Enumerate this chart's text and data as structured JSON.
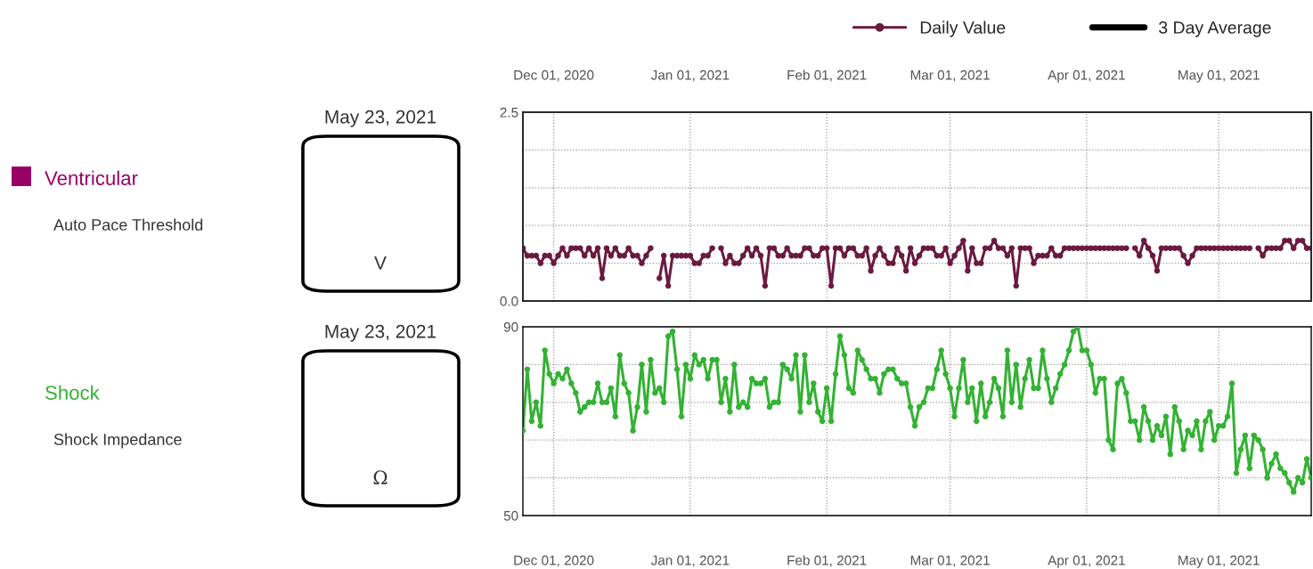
{
  "chart_data": [
    {
      "type": "other",
      "title": "Ventricular",
      "subtitle": "Auto Pace Threshold",
      "annotations": [
        "May 23, 2021",
        "V"
      ]
    },
    {
      "type": "line",
      "x": [
        "2020-11-24",
        "2020-11-25",
        "2020-11-26",
        "2020-11-27",
        "2020-11-28",
        "2020-11-29",
        "2020-11-30",
        "2020-12-01",
        "2020-12-02",
        "2020-12-03",
        "2020-12-04",
        "2020-12-05",
        "2020-12-06",
        "2020-12-07",
        "2020-12-08",
        "2020-12-09",
        "2020-12-10",
        "2020-12-11",
        "2020-12-12",
        "2020-12-13",
        "2020-12-14",
        "2020-12-15",
        "2020-12-16",
        "2020-12-17",
        "2020-12-18",
        "2020-12-19",
        "2020-12-20",
        "2020-12-21",
        "2020-12-22",
        "2020-12-23",
        "2020-12-24",
        "2020-12-25",
        "2020-12-26",
        "2020-12-27",
        "2020-12-28",
        "2020-12-29",
        "2020-12-30",
        "2020-12-31",
        "2021-01-01",
        "2021-01-02",
        "2021-01-03",
        "2021-01-04",
        "2021-01-05",
        "2021-01-06",
        "2021-01-07",
        "2021-01-08",
        "2021-01-09",
        "2021-01-10",
        "2021-01-11",
        "2021-01-12",
        "2021-01-13",
        "2021-01-14",
        "2021-01-15",
        "2021-01-16",
        "2021-01-17",
        "2021-01-18",
        "2021-01-19",
        "2021-01-20",
        "2021-01-21",
        "2021-01-22",
        "2021-01-23",
        "2021-01-24",
        "2021-01-25",
        "2021-01-26",
        "2021-01-27",
        "2021-01-28",
        "2021-01-29",
        "2021-01-30",
        "2021-01-31",
        "2021-02-01",
        "2021-02-02",
        "2021-02-03",
        "2021-02-04",
        "2021-02-05",
        "2021-02-06",
        "2021-02-07",
        "2021-02-08",
        "2021-02-09",
        "2021-02-10",
        "2021-02-11",
        "2021-02-12",
        "2021-02-13",
        "2021-02-14",
        "2021-02-15",
        "2021-02-16",
        "2021-02-17",
        "2021-02-18",
        "2021-02-19",
        "2021-02-20",
        "2021-02-21",
        "2021-02-22",
        "2021-02-23",
        "2021-02-24",
        "2021-02-25",
        "2021-02-26",
        "2021-02-27",
        "2021-02-28",
        "2021-03-01",
        "2021-03-02",
        "2021-03-03",
        "2021-03-04",
        "2021-03-05",
        "2021-03-06",
        "2021-03-07",
        "2021-03-08",
        "2021-03-09",
        "2021-03-10",
        "2021-03-11",
        "2021-03-12",
        "2021-03-13",
        "2021-03-14",
        "2021-03-15",
        "2021-03-16",
        "2021-03-17",
        "2021-03-18",
        "2021-03-19",
        "2021-03-20",
        "2021-03-21",
        "2021-03-22",
        "2021-03-23",
        "2021-03-24",
        "2021-03-25",
        "2021-03-26",
        "2021-03-27",
        "2021-03-28",
        "2021-03-29",
        "2021-03-30",
        "2021-03-31",
        "2021-04-01",
        "2021-04-02",
        "2021-04-03",
        "2021-04-04",
        "2021-04-05",
        "2021-04-06",
        "2021-04-07",
        "2021-04-08",
        "2021-04-09",
        "2021-04-10",
        "2021-04-11",
        "2021-04-12",
        "2021-04-13",
        "2021-04-14",
        "2021-04-15",
        "2021-04-16",
        "2021-04-17",
        "2021-04-18",
        "2021-04-19",
        "2021-04-20",
        "2021-04-21",
        "2021-04-22",
        "2021-04-23",
        "2021-04-24",
        "2021-04-25",
        "2021-04-26",
        "2021-04-27",
        "2021-04-28",
        "2021-04-29",
        "2021-04-30",
        "2021-05-01",
        "2021-05-02",
        "2021-05-03",
        "2021-05-04",
        "2021-05-05",
        "2021-05-06",
        "2021-05-07",
        "2021-05-08",
        "2021-05-09",
        "2021-05-10",
        "2021-05-11",
        "2021-05-12",
        "2021-05-13",
        "2021-05-14",
        "2021-05-15",
        "2021-05-16",
        "2021-05-17",
        "2021-05-18",
        "2021-05-19",
        "2021-05-20",
        "2021-05-21",
        "2021-05-22"
      ],
      "series": [
        {
          "name": "Daily Value",
          "color": "#6b1a3f",
          "marker": "circle",
          "line_style": "solid",
          "values": [
            0.7,
            0.6,
            0.6,
            0.6,
            0.5,
            0.6,
            0.6,
            0.5,
            0.6,
            0.7,
            0.6,
            0.7,
            0.7,
            0.7,
            0.6,
            0.7,
            0.6,
            0.7,
            0.3,
            0.7,
            0.6,
            0.7,
            0.6,
            0.6,
            0.7,
            0.6,
            0.6,
            0.5,
            0.6,
            0.7,
            null,
            0.3,
            0.6,
            0.2,
            0.6,
            0.6,
            0.6,
            0.6,
            0.6,
            0.5,
            0.5,
            0.6,
            0.6,
            0.7,
            null,
            0.7,
            0.5,
            0.6,
            0.5,
            0.5,
            0.6,
            0.7,
            0.6,
            0.7,
            0.6,
            0.2,
            0.7,
            0.7,
            0.6,
            0.6,
            0.7,
            0.6,
            0.6,
            0.6,
            0.7,
            0.7,
            0.6,
            0.6,
            0.7,
            0.7,
            0.2,
            0.7,
            0.7,
            0.6,
            0.7,
            0.7,
            0.6,
            0.6,
            0.7,
            0.4,
            0.6,
            0.7,
            0.6,
            0.5,
            0.5,
            0.7,
            0.6,
            0.4,
            0.7,
            0.5,
            0.6,
            0.7,
            0.7,
            0.7,
            0.6,
            0.6,
            0.7,
            0.5,
            0.6,
            0.7,
            0.8,
            0.4,
            0.7,
            0.5,
            0.5,
            0.7,
            0.7,
            0.8,
            0.7,
            0.7,
            0.6,
            0.7,
            0.2,
            0.7,
            0.7,
            0.7,
            0.5,
            0.6,
            0.6,
            0.6,
            0.7,
            0.6,
            0.6,
            0.7,
            0.7,
            0.7,
            0.7,
            0.7,
            0.7,
            0.7,
            0.7,
            0.7,
            0.7,
            0.7,
            0.7,
            0.7,
            0.7,
            0.7,
            null,
            0.7,
            0.6,
            0.8,
            0.7,
            0.6,
            0.4,
            0.7,
            0.7,
            0.7,
            0.7,
            0.7,
            0.6,
            0.5,
            0.6,
            0.7,
            0.7,
            0.7,
            0.7,
            0.7,
            0.7,
            0.7,
            0.7,
            0.7,
            0.7,
            0.7,
            0.7,
            0.7,
            null,
            0.7,
            0.6,
            0.7,
            0.7,
            0.7,
            0.7,
            0.8,
            0.8,
            0.7,
            0.8,
            0.8,
            0.7,
            0.7
          ]
        },
        {
          "name": "3 Day Average",
          "color": "#000000",
          "marker": "none",
          "line_style": "solid",
          "values": [
            null,
            null,
            null,
            null,
            null,
            null,
            null,
            null,
            null,
            null,
            null,
            null,
            null,
            null,
            null,
            null,
            null,
            null,
            null,
            null,
            null,
            null,
            null,
            null,
            null,
            null,
            null,
            null,
            null,
            null,
            null,
            null,
            null,
            null,
            null,
            null,
            null,
            null,
            null,
            null,
            null,
            null,
            null,
            null,
            null,
            null,
            null,
            null,
            null,
            null,
            null,
            null,
            null,
            null,
            null,
            null,
            null,
            null,
            null,
            null,
            null,
            null,
            null,
            null,
            null,
            null,
            null,
            null,
            null,
            null,
            null,
            null,
            null,
            null,
            null,
            null,
            null,
            null,
            null,
            null,
            null,
            null,
            null,
            null,
            null,
            null,
            null,
            null,
            null,
            null,
            null,
            null,
            null,
            null,
            null,
            null,
            null,
            null,
            null,
            null,
            null,
            null,
            null,
            null,
            null,
            null,
            null,
            null,
            null,
            null,
            null,
            null,
            null,
            null,
            null,
            null,
            null,
            null,
            null,
            null,
            null,
            null,
            null,
            null,
            null,
            null,
            null,
            null,
            null,
            null,
            null,
            null,
            null,
            null,
            null,
            null,
            null,
            null,
            null,
            null,
            null,
            null,
            null,
            null,
            null,
            null,
            null,
            null,
            null,
            null,
            null,
            null,
            null,
            null,
            null,
            null,
            null,
            null,
            null,
            null,
            null,
            null,
            null,
            null,
            null,
            null,
            null,
            null,
            null,
            null,
            null,
            null,
            null,
            null,
            null,
            null,
            null,
            null,
            null,
            null
          ]
        }
      ],
      "xlim": [
        "2020-11-24",
        "2021-05-22"
      ],
      "xticks": [
        {
          "value": "2020-12-01",
          "label": null
        },
        {
          "value": "2021-01-01",
          "label": null
        },
        {
          "value": "2021-02-01",
          "label": null
        },
        {
          "value": "2021-03-01",
          "label": null
        },
        {
          "value": "2021-04-01",
          "label": null
        },
        {
          "value": "2021-05-01",
          "label": null
        }
      ],
      "tick_labels": "y",
      "x2lim": [
        "2020-11-24",
        "2021-05-22"
      ],
      "x2ticks": [
        {
          "value": "2020-12-01",
          "label": "Dec 01, 2020"
        },
        {
          "value": "2021-01-01",
          "label": "Jan 01, 2021"
        },
        {
          "value": "2021-02-01",
          "label": "Feb 01, 2021"
        },
        {
          "value": "2021-03-01",
          "label": "Mar 01, 2021"
        },
        {
          "value": "2021-04-01",
          "label": "Apr 01, 2021"
        },
        {
          "value": "2021-05-01",
          "label": "May 01, 2021"
        }
      ],
      "ylim": [
        0,
        2.5
      ],
      "yticks": [
        {
          "value": 0,
          "label": "0.0"
        },
        {
          "value": 0.5,
          "label": null
        },
        {
          "value": 1,
          "label": null
        },
        {
          "value": 1.5,
          "label": null
        },
        {
          "value": 2,
          "label": null
        },
        {
          "value": 2.5,
          "label": "2.5"
        }
      ],
      "grid": true,
      "legend": "top right"
    },
    {
      "type": "other",
      "title": "Shock",
      "subtitle": "Shock Impedance",
      "annotations": [
        "May 23, 2021",
        "Ω"
      ]
    },
    {
      "type": "line",
      "x": [
        "2020-11-24",
        "2020-11-25",
        "2020-11-26",
        "2020-11-27",
        "2020-11-28",
        "2020-11-29",
        "2020-11-30",
        "2020-12-01",
        "2020-12-02",
        "2020-12-03",
        "2020-12-04",
        "2020-12-05",
        "2020-12-06",
        "2020-12-07",
        "2020-12-08",
        "2020-12-09",
        "2020-12-10",
        "2020-12-11",
        "2020-12-12",
        "2020-12-13",
        "2020-12-14",
        "2020-12-15",
        "2020-12-16",
        "2020-12-17",
        "2020-12-18",
        "2020-12-19",
        "2020-12-20",
        "2020-12-21",
        "2020-12-22",
        "2020-12-23",
        "2020-12-24",
        "2020-12-25",
        "2020-12-26",
        "2020-12-27",
        "2020-12-28",
        "2020-12-29",
        "2020-12-30",
        "2020-12-31",
        "2021-01-01",
        "2021-01-02",
        "2021-01-03",
        "2021-01-04",
        "2021-01-05",
        "2021-01-06",
        "2021-01-07",
        "2021-01-08",
        "2021-01-09",
        "2021-01-10",
        "2021-01-11",
        "2021-01-12",
        "2021-01-13",
        "2021-01-14",
        "2021-01-15",
        "2021-01-16",
        "2021-01-17",
        "2021-01-18",
        "2021-01-19",
        "2021-01-20",
        "2021-01-21",
        "2021-01-22",
        "2021-01-23",
        "2021-01-24",
        "2021-01-25",
        "2021-01-26",
        "2021-01-27",
        "2021-01-28",
        "2021-01-29",
        "2021-01-30",
        "2021-01-31",
        "2021-02-01",
        "2021-02-02",
        "2021-02-03",
        "2021-02-04",
        "2021-02-05",
        "2021-02-06",
        "2021-02-07",
        "2021-02-08",
        "2021-02-09",
        "2021-02-10",
        "2021-02-11",
        "2021-02-12",
        "2021-02-13",
        "2021-02-14",
        "2021-02-15",
        "2021-02-16",
        "2021-02-17",
        "2021-02-18",
        "2021-02-19",
        "2021-02-20",
        "2021-02-21",
        "2021-02-22",
        "2021-02-23",
        "2021-02-24",
        "2021-02-25",
        "2021-02-26",
        "2021-02-27",
        "2021-02-28",
        "2021-03-01",
        "2021-03-02",
        "2021-03-03",
        "2021-03-04",
        "2021-03-05",
        "2021-03-06",
        "2021-03-07",
        "2021-03-08",
        "2021-03-09",
        "2021-03-10",
        "2021-03-11",
        "2021-03-12",
        "2021-03-13",
        "2021-03-14",
        "2021-03-15",
        "2021-03-16",
        "2021-03-17",
        "2021-03-18",
        "2021-03-19",
        "2021-03-20",
        "2021-03-21",
        "2021-03-22",
        "2021-03-23",
        "2021-03-24",
        "2021-03-25",
        "2021-03-26",
        "2021-03-27",
        "2021-03-28",
        "2021-03-29",
        "2021-03-30",
        "2021-03-31",
        "2021-04-01",
        "2021-04-02",
        "2021-04-03",
        "2021-04-04",
        "2021-04-05",
        "2021-04-06",
        "2021-04-07",
        "2021-04-08",
        "2021-04-09",
        "2021-04-10",
        "2021-04-11",
        "2021-04-12",
        "2021-04-13",
        "2021-04-14",
        "2021-04-15",
        "2021-04-16",
        "2021-04-17",
        "2021-04-18",
        "2021-04-19",
        "2021-04-20",
        "2021-04-21",
        "2021-04-22",
        "2021-04-23",
        "2021-04-24",
        "2021-04-25",
        "2021-04-26",
        "2021-04-27",
        "2021-04-28",
        "2021-04-29",
        "2021-04-30",
        "2021-05-01",
        "2021-05-02",
        "2021-05-03",
        "2021-05-04",
        "2021-05-05",
        "2021-05-06",
        "2021-05-07",
        "2021-05-08",
        "2021-05-09",
        "2021-05-10",
        "2021-05-11",
        "2021-05-12",
        "2021-05-13",
        "2021-05-14",
        "2021-05-15",
        "2021-05-16",
        "2021-05-17",
        "2021-05-18",
        "2021-05-19",
        "2021-05-20",
        "2021-05-21",
        "2021-05-22"
      ],
      "series": [
        {
          "color": "#33b233",
          "marker": "circle",
          "line_style": "solid",
          "values": [
            68,
            81,
            70,
            74,
            69,
            85,
            80,
            78,
            80,
            79,
            81,
            78,
            76,
            72,
            73,
            74,
            74,
            78,
            74,
            74,
            77,
            71,
            84,
            78,
            76,
            68,
            73,
            82,
            72,
            83,
            76,
            77,
            74,
            88,
            89,
            81,
            71,
            82,
            79,
            84,
            82,
            83,
            79,
            83,
            83,
            74,
            79,
            72,
            82,
            73,
            74,
            73,
            79,
            78,
            78,
            79,
            73,
            74,
            74,
            82,
            81,
            79,
            84,
            72,
            84,
            74,
            78,
            72,
            70,
            77,
            70,
            80,
            88,
            84,
            77,
            76,
            85,
            83,
            81,
            79,
            79,
            76,
            80,
            81,
            81,
            79,
            78,
            78,
            73,
            69,
            73,
            74,
            77,
            77,
            81,
            85,
            80,
            77,
            71,
            77,
            83,
            74,
            77,
            70,
            78,
            71,
            74,
            79,
            77,
            71,
            85,
            74,
            82,
            73,
            79,
            83,
            77,
            77,
            85,
            79,
            74,
            77,
            80,
            82,
            85,
            89,
            90,
            85,
            85,
            82,
            76,
            79,
            79,
            66,
            64,
            78,
            79,
            76,
            70,
            70,
            66,
            73,
            70,
            66,
            69,
            67,
            71,
            63,
            73,
            70,
            64,
            68,
            67,
            70,
            64,
            70,
            72,
            66,
            69,
            69,
            71,
            78,
            59,
            64,
            67,
            60,
            67,
            66,
            64,
            58,
            61,
            63,
            60,
            59,
            57,
            55,
            58,
            57,
            62,
            58
          ]
        }
      ],
      "xlim": [
        "2020-11-24",
        "2021-05-22"
      ],
      "xticks": [
        {
          "value": "2020-12-01",
          "label": "Dec 01, 2020"
        },
        {
          "value": "2021-01-01",
          "label": "Jan 01, 2021"
        },
        {
          "value": "2021-02-01",
          "label": "Feb 01, 2021"
        },
        {
          "value": "2021-03-01",
          "label": "Mar 01, 2021"
        },
        {
          "value": "2021-04-01",
          "label": "Apr 01, 2021"
        },
        {
          "value": "2021-05-01",
          "label": "May 01, 2021"
        }
      ],
      "ylim": [
        50,
        90
      ],
      "yticks": [
        50,
        {
          "value": 58,
          "label": null
        },
        {
          "value": 66,
          "label": null
        },
        {
          "value": 74,
          "label": null
        },
        {
          "value": 82,
          "label": null
        },
        90
      ],
      "grid": true
    }
  ]
}
